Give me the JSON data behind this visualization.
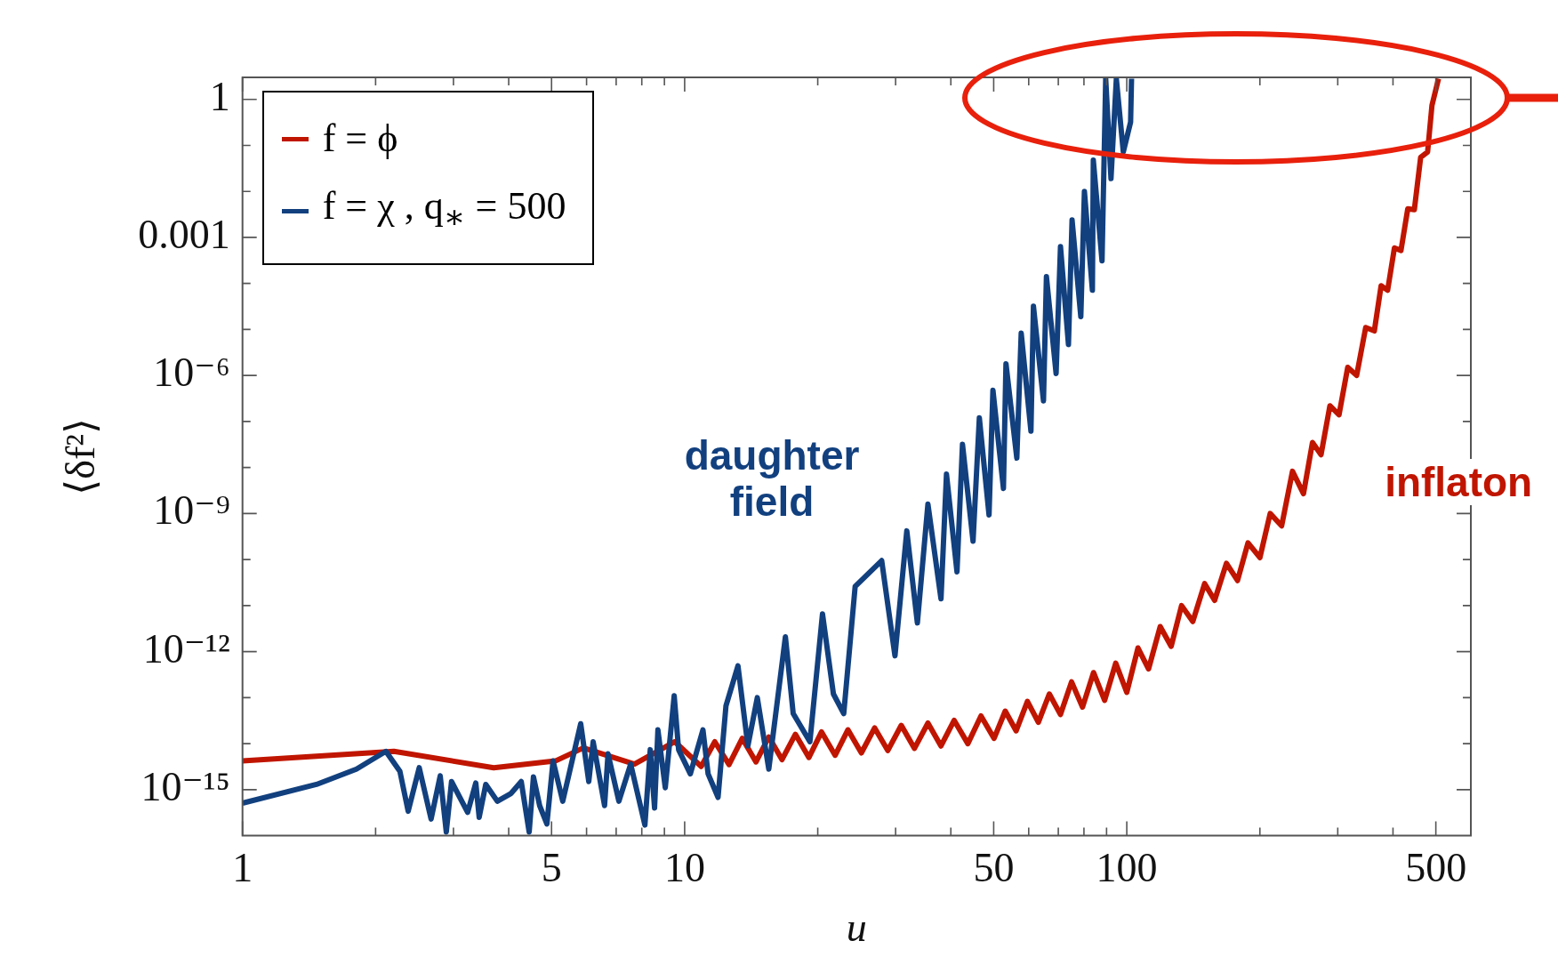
{
  "chart_data": {
    "type": "line",
    "xlabel": "u",
    "ylabel": "⟨δf²⟩",
    "log": "xy",
    "xlim": [
      1,
      600
    ],
    "ylim": [
      1e-16,
      3
    ],
    "xticks": [
      1,
      {
        "value": 2,
        "label": null
      },
      {
        "value": 3,
        "label": null
      },
      {
        "value": 4,
        "label": null
      },
      5,
      {
        "value": 6,
        "label": null
      },
      {
        "value": 7,
        "label": null
      },
      {
        "value": 8,
        "label": null
      },
      {
        "value": 9,
        "label": null
      },
      10,
      {
        "value": 20,
        "label": null
      },
      {
        "value": 30,
        "label": null
      },
      {
        "value": 40,
        "label": null
      },
      50,
      {
        "value": 60,
        "label": null
      },
      {
        "value": 70,
        "label": null
      },
      {
        "value": 80,
        "label": null
      },
      {
        "value": 90,
        "label": null
      },
      100,
      {
        "value": 200,
        "label": null
      },
      {
        "value": 300,
        "label": null
      },
      {
        "value": 400,
        "label": null
      },
      500
    ],
    "yticks": [
      1,
      {
        "value": 0.1,
        "label": null
      },
      {
        "value": 0.01,
        "label": null
      },
      0.001,
      {
        "value": 0.0001,
        "label": null
      },
      {
        "value": 1e-05,
        "label": null
      },
      {
        "value": 1e-06,
        "label": "10⁻⁶"
      },
      {
        "value": 1e-07,
        "label": null
      },
      {
        "value": 1e-08,
        "label": null
      },
      {
        "value": 1e-09,
        "label": "10⁻⁹"
      },
      {
        "value": 1e-10,
        "label": null
      },
      {
        "value": 1e-11,
        "label": null
      },
      {
        "value": 1e-12,
        "label": "10⁻¹²"
      },
      {
        "value": 1e-13,
        "label": null
      },
      {
        "value": 1e-14,
        "label": null
      },
      {
        "value": 1e-15,
        "label": "10⁻¹⁵"
      }
    ],
    "legend": "top left",
    "annotations": [
      "inflaton",
      "daughter field"
    ],
    "series": [
      {
        "name": "f = ϕ",
        "color": "#c01500",
        "x": [
          1,
          2.2,
          3.7,
          5.1,
          5.9,
          7.7,
          9.5,
          10.9,
          11.7,
          12.6,
          13.5,
          14.5,
          15.5,
          16.6,
          17.8,
          19.1,
          20.4,
          21.9,
          23.4,
          25.1,
          26.9,
          28.8,
          30.9,
          33.1,
          35.5,
          38.0,
          40.7,
          43.7,
          46.8,
          50.1,
          53.1,
          56.2,
          59.6,
          63.1,
          66.8,
          70.8,
          75.0,
          79.4,
          84.1,
          89.1,
          94.4,
          100,
          106,
          112,
          119,
          126,
          133,
          141,
          150,
          158,
          168,
          178,
          188,
          200,
          211,
          224,
          237,
          251,
          263,
          275,
          288,
          302,
          316,
          331,
          347,
          363,
          376,
          389,
          403,
          417,
          432,
          447,
          462,
          479,
          490,
          507
        ],
        "values": [
          4.2e-15,
          6.8e-15,
          3e-15,
          4.2e-15,
          8.1e-15,
          3.6e-15,
          1.1e-14,
          3.2e-15,
          1.1e-14,
          3.5e-15,
          1.3e-14,
          4e-15,
          1.4e-14,
          4.5e-15,
          1.6e-14,
          5e-15,
          1.8e-14,
          5.6e-15,
          2e-14,
          6.3e-15,
          2.2e-14,
          7.1e-15,
          2.5e-14,
          7.9e-15,
          2.8e-14,
          8.9e-15,
          3.2e-14,
          1e-14,
          4e-14,
          1.3e-14,
          5.1e-14,
          1.9e-14,
          8.3e-14,
          2.9e-14,
          1.2e-13,
          4.3e-14,
          2.2e-13,
          6.2e-14,
          3.5e-13,
          8.7e-14,
          5.6e-13,
          1.3e-13,
          1.2e-12,
          4.2e-13,
          3.5e-12,
          1.3e-12,
          1e-11,
          4.5e-12,
          3e-11,
          1.3e-11,
          8.3e-11,
          3.5e-11,
          2.3e-10,
          1.1e-10,
          1e-09,
          5.4e-10,
          8.3e-09,
          2.7e-09,
          3.5e-08,
          1.9e-08,
          2.2e-07,
          1.4e-07,
          1.5e-06,
          1e-06,
          1.1e-05,
          9.3e-06,
          8.9e-05,
          7.1e-05,
          0.00059,
          0.00052,
          0.0042,
          0.004,
          0.055,
          0.072,
          0.74,
          2.8
        ]
      },
      {
        "name": "f = χ , q$_{∗}$ = 500",
        "color": "#12407f",
        "x": [
          1,
          1.47,
          1.81,
          2.11,
          2.27,
          2.37,
          2.51,
          2.67,
          2.8,
          2.89,
          2.97,
          3.23,
          3.37,
          3.43,
          3.55,
          3.77,
          4.05,
          4.27,
          4.45,
          4.55,
          4.7,
          4.88,
          5.04,
          5.3,
          5.82,
          6.07,
          6.21,
          6.59,
          6.71,
          7.1,
          7.55,
          8.13,
          8.36,
          8.55,
          8.7,
          9.04,
          9.47,
          9.69,
          10.3,
          11,
          11.3,
          11.9,
          12.4,
          13.2,
          13.9,
          14.6,
          15.5,
          16.9,
          17.6,
          19.2,
          20.5,
          21.7,
          22.9,
          24.3,
          27.9,
          29.9,
          31.8,
          33.6,
          35.5,
          38,
          39.1,
          41.3,
          42.5,
          44.9,
          46.4,
          48.8,
          49.8,
          52.6,
          53.3,
          56.4,
          57.7,
          60.7,
          61.5,
          64.8,
          65.8,
          69.2,
          70.8,
          73.8,
          75.2,
          78.7,
          80.2,
          83.6,
          84,
          87.9,
          89.6,
          92.1,
          94.7,
          98.2,
          102,
          102.5
        ],
        "values": [
          5.1e-16,
          1.3e-15,
          2.8e-15,
          6.8e-15,
          2.5e-15,
          3.4e-16,
          3e-15,
          2.3e-16,
          2e-15,
          1.2e-16,
          1.5e-15,
          3.2e-16,
          1.4e-15,
          2.5e-16,
          1.3e-15,
          5.6e-16,
          8.3e-16,
          1.5e-15,
          1.2e-16,
          1.9e-15,
          4.5e-16,
          1.8e-16,
          4.2e-15,
          5.6e-16,
          2.7e-14,
          1.5e-15,
          1.1e-14,
          4.5e-16,
          6e-15,
          5.6e-16,
          3.6e-15,
          1.7e-16,
          7.4e-15,
          4e-16,
          2e-14,
          1.1e-15,
          1.1e-13,
          7.4e-15,
          2.2e-15,
          2e-14,
          2.2e-15,
          6.8e-16,
          6.6e-14,
          4.9e-13,
          8.9e-15,
          1e-13,
          2.8e-15,
          2.1e-12,
          4.5e-14,
          1.1e-14,
          6.6e-12,
          1.2e-13,
          4.5e-14,
          2.6e-11,
          9.5e-11,
          8.1e-13,
          4.2e-10,
          4.2e-12,
          1.6e-09,
          1.4e-11,
          7.2e-09,
          5.4e-11,
          3.2e-08,
          2.5e-10,
          1.2e-07,
          9.3e-10,
          4.8e-07,
          3.5e-09,
          1.8e-06,
          1.6e-08,
          8.3e-06,
          6.2e-08,
          3.2e-05,
          2.8e-07,
          0.00014,
          1.1e-06,
          0.00063,
          4.7e-06,
          0.0024,
          1.9e-05,
          0.01,
          7.1e-05,
          0.048,
          0.00031,
          2.8,
          0.019,
          2.8,
          0.072,
          0.32,
          2.8
        ]
      }
    ]
  }
}
